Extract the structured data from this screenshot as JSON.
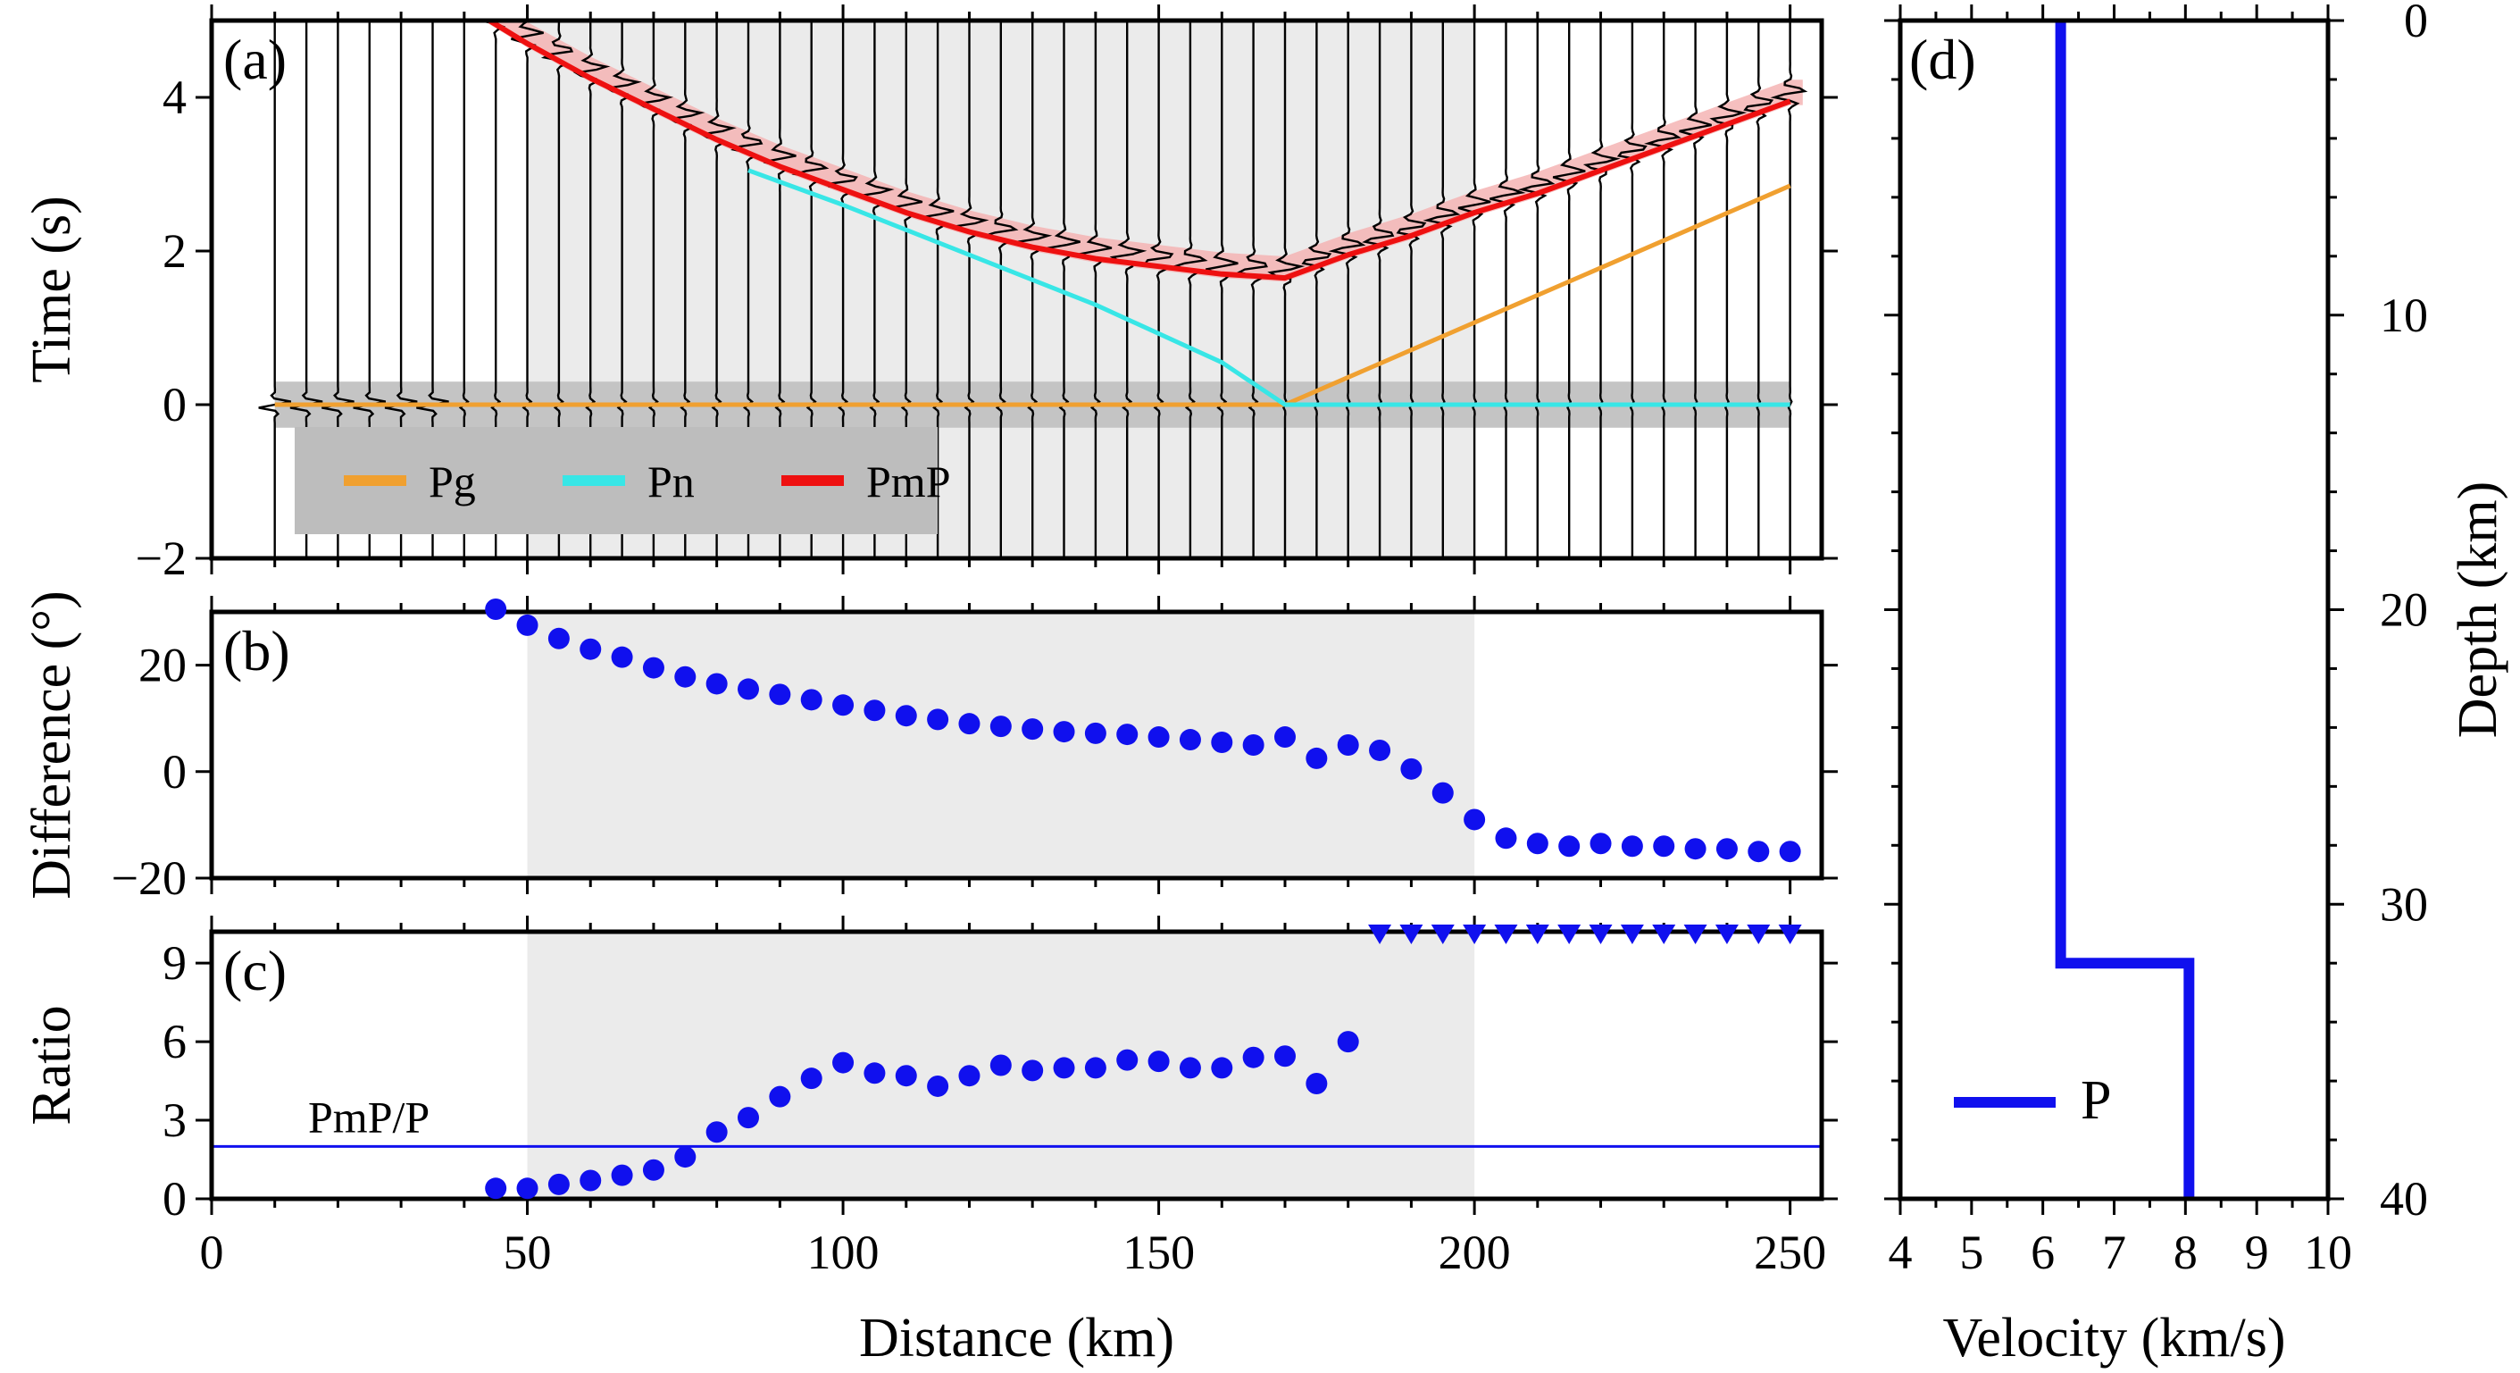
{
  "chart_data": [
    {
      "panel": "(a)",
      "type": "line",
      "ylabel": "Time (s)",
      "xlabel": "",
      "xlim": [
        0,
        255
      ],
      "ylim": [
        -2,
        5
      ],
      "yticks": [
        -2,
        0,
        2,
        4
      ],
      "xticks": [
        0,
        50,
        100,
        150,
        200,
        250
      ],
      "shaded_x": [
        50,
        200
      ],
      "shaded_band_y": [
        -0.3,
        0.3
      ],
      "legend": {
        "position": "bottom-left",
        "entries": [
          "Pg",
          "Pn",
          "PmP"
        ]
      },
      "series": [
        {
          "name": "Pg",
          "color": "#f0a030",
          "x": [
            10,
            170,
            250
          ],
          "y": [
            0,
            0,
            2.85
          ]
        },
        {
          "name": "Pn",
          "color": "#38e6e6",
          "x": [
            85,
            100,
            120,
            140,
            160,
            170,
            250
          ],
          "y": [
            3.05,
            2.6,
            1.95,
            1.3,
            0.55,
            0,
            0
          ]
        },
        {
          "name": "PmP",
          "color": "#ee1010",
          "x": [
            44,
            50,
            60,
            70,
            80,
            90,
            100,
            110,
            120,
            130,
            140,
            150,
            160,
            170,
            180,
            190,
            200,
            210,
            220,
            230,
            240,
            250
          ],
          "y": [
            5.0,
            4.7,
            4.25,
            3.85,
            3.45,
            3.1,
            2.8,
            2.5,
            2.25,
            2.05,
            1.9,
            1.8,
            1.7,
            1.65,
            1.95,
            2.2,
            2.5,
            2.75,
            3.05,
            3.35,
            3.65,
            3.95
          ]
        }
      ],
      "traces": {
        "x_start": 10,
        "x_step": 5,
        "x_end": 250
      }
    },
    {
      "panel": "(b)",
      "type": "scatter",
      "ylabel": "Difference (°)",
      "xlabel": "",
      "xlim": [
        0,
        255
      ],
      "ylim": [
        -20,
        30
      ],
      "yticks": [
        -20,
        0,
        20
      ],
      "xticks": [
        0,
        50,
        100,
        150,
        200,
        250
      ],
      "shaded_x": [
        50,
        200
      ],
      "color": "#1010ee",
      "x": [
        45,
        50,
        55,
        60,
        65,
        70,
        75,
        80,
        85,
        90,
        95,
        100,
        105,
        110,
        115,
        120,
        125,
        130,
        135,
        140,
        145,
        150,
        155,
        160,
        165,
        170,
        175,
        180,
        185,
        190,
        195,
        200,
        205,
        210,
        215,
        220,
        225,
        230,
        235,
        240,
        245,
        250
      ],
      "y": [
        30.5,
        27.5,
        25,
        23,
        21.5,
        19.5,
        17.8,
        16.5,
        15.5,
        14.5,
        13.5,
        12.5,
        11.5,
        10.5,
        9.8,
        9,
        8.5,
        8,
        7.5,
        7.2,
        7,
        6.5,
        6,
        5.5,
        5,
        6.5,
        2.5,
        5,
        4,
        0.5,
        -4,
        -9,
        -12.5,
        -13.5,
        -14,
        -13.5,
        -14,
        -14,
        -14.5,
        -14.5,
        -15,
        -15
      ]
    },
    {
      "panel": "(c)",
      "type": "scatter",
      "ylabel": "Ratio",
      "xlabel": "Distance (km)",
      "xlim": [
        0,
        255
      ],
      "ylim": [
        0,
        10.2
      ],
      "yticks": [
        0,
        3,
        6,
        9
      ],
      "xticks": [
        0,
        50,
        100,
        150,
        200,
        250
      ],
      "shaded_x": [
        50,
        200
      ],
      "color": "#1010ee",
      "reference_line": {
        "y": 2,
        "label": "PmP/P"
      },
      "x": [
        45,
        50,
        55,
        60,
        65,
        70,
        75,
        80,
        85,
        90,
        95,
        100,
        105,
        110,
        115,
        120,
        125,
        130,
        135,
        140,
        145,
        150,
        155,
        160,
        165,
        170,
        175,
        180
      ],
      "y": [
        0.4,
        0.4,
        0.55,
        0.7,
        0.9,
        1.1,
        1.6,
        2.55,
        3.1,
        3.9,
        4.6,
        5.2,
        4.8,
        4.7,
        4.3,
        4.7,
        5.1,
        4.9,
        5.0,
        5.0,
        5.3,
        5.25,
        5.0,
        5.0,
        5.4,
        5.45,
        4.4,
        6.0
      ],
      "triangles_x": [
        185,
        190,
        195,
        200,
        205,
        210,
        215,
        220,
        225,
        230,
        235,
        240,
        245,
        250
      ],
      "triangles_y": 10.2
    },
    {
      "panel": "(d)",
      "type": "line",
      "xlabel": "Velocity (km/s)",
      "ylabel": "Depth (km)",
      "xlim": [
        4,
        10
      ],
      "ylim": [
        0,
        40
      ],
      "xticks": [
        4,
        5,
        6,
        7,
        8,
        9,
        10
      ],
      "yticks": [
        0,
        10,
        20,
        30,
        40
      ],
      "legend": {
        "position": "bottom-left",
        "entries": [
          "P"
        ]
      },
      "series": [
        {
          "name": "P",
          "color": "#1010ee",
          "x": [
            6.25,
            6.25,
            8.05,
            8.05
          ],
          "y": [
            0,
            32,
            32,
            40
          ]
        }
      ]
    }
  ]
}
